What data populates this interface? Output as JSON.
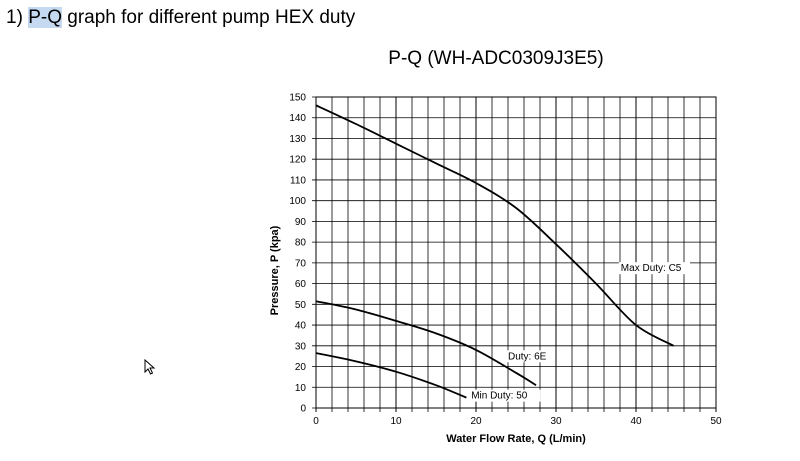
{
  "heading": {
    "prefix": "1) ",
    "highlight": "P-Q",
    "rest": " graph for different pump HEX duty"
  },
  "cursor_icon": "mouse-pointer-icon",
  "colors": {
    "highlight": "#c5d9f1",
    "grid": "#000000",
    "curve": "#000000"
  },
  "chart_data": {
    "type": "line",
    "title": "P-Q (WH-ADC0309J3E5)",
    "xlabel": "Water Flow Rate, Q (L/min)",
    "ylabel": "Pressure, P (kpa)",
    "xlim": [
      0,
      50
    ],
    "ylim": [
      0,
      150
    ],
    "x_major_ticks": [
      0,
      10,
      20,
      30,
      40,
      50
    ],
    "x_minor_step": 2,
    "y_ticks": [
      0,
      10,
      20,
      30,
      40,
      50,
      60,
      70,
      80,
      90,
      100,
      110,
      120,
      130,
      140,
      150
    ],
    "grid": true,
    "legend": "none",
    "series": [
      {
        "label": "Max Duty: C5",
        "points": [
          [
            0,
            146
          ],
          [
            5,
            137
          ],
          [
            10,
            127.5
          ],
          [
            15,
            118
          ],
          [
            20,
            108.5
          ],
          [
            25,
            96.5
          ],
          [
            30,
            79
          ],
          [
            35,
            60
          ],
          [
            40,
            40
          ],
          [
            44.7,
            30
          ]
        ]
      },
      {
        "label": "Duty: 6E",
        "points": [
          [
            0,
            51.5
          ],
          [
            5,
            47.5
          ],
          [
            10,
            42
          ],
          [
            15,
            36
          ],
          [
            20,
            28
          ],
          [
            25,
            17
          ],
          [
            27.5,
            11
          ]
        ]
      },
      {
        "label": "Min Duty: 50",
        "points": [
          [
            0,
            26.5
          ],
          [
            5,
            22.5
          ],
          [
            10,
            17.5
          ],
          [
            15,
            11
          ],
          [
            18.8,
            5
          ]
        ]
      }
    ]
  }
}
